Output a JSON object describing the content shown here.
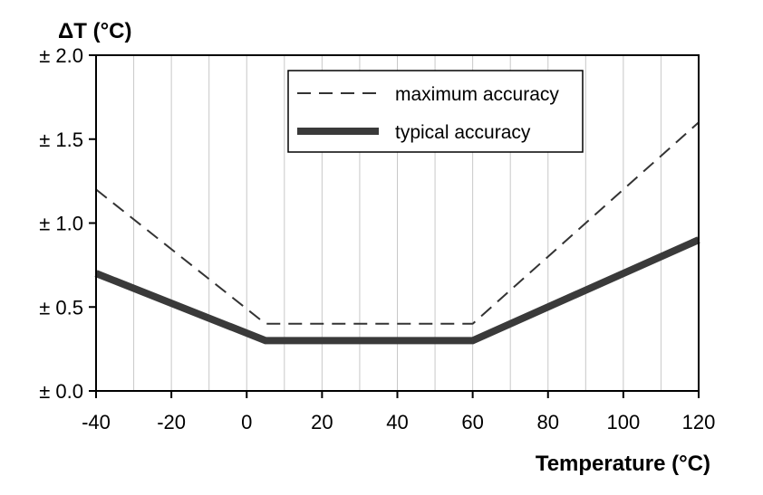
{
  "chart_data": {
    "type": "line",
    "xlabel": "Temperature (°C)",
    "ylabel": "ΔT (°C)",
    "xlim": [
      -40,
      120
    ],
    "ylim": [
      0,
      2
    ],
    "x_ticks": [
      -40,
      -20,
      0,
      20,
      40,
      60,
      80,
      100,
      120
    ],
    "x_tick_labels": [
      "-40",
      "-20",
      "0",
      "20",
      "40",
      "60",
      "80",
      "100",
      "120"
    ],
    "y_ticks": [
      0,
      0.5,
      1.0,
      1.5,
      2.0
    ],
    "y_tick_labels": [
      "± 0.0",
      "± 0.5",
      "± 1.0",
      "± 1.5",
      "± 2.0"
    ],
    "grid": "vertical",
    "legend_position": "top",
    "series": [
      {
        "name": "maximum accuracy",
        "style": "dashed",
        "color": "#333333",
        "points": [
          [
            -40,
            1.2
          ],
          [
            5,
            0.4
          ],
          [
            60,
            0.4
          ],
          [
            120,
            1.6
          ]
        ]
      },
      {
        "name": "typical accuracy",
        "style": "solid-thick",
        "color": "#3a3a3a",
        "points": [
          [
            -40,
            0.7
          ],
          [
            5,
            0.3
          ],
          [
            60,
            0.3
          ],
          [
            120,
            0.9
          ]
        ]
      }
    ]
  }
}
